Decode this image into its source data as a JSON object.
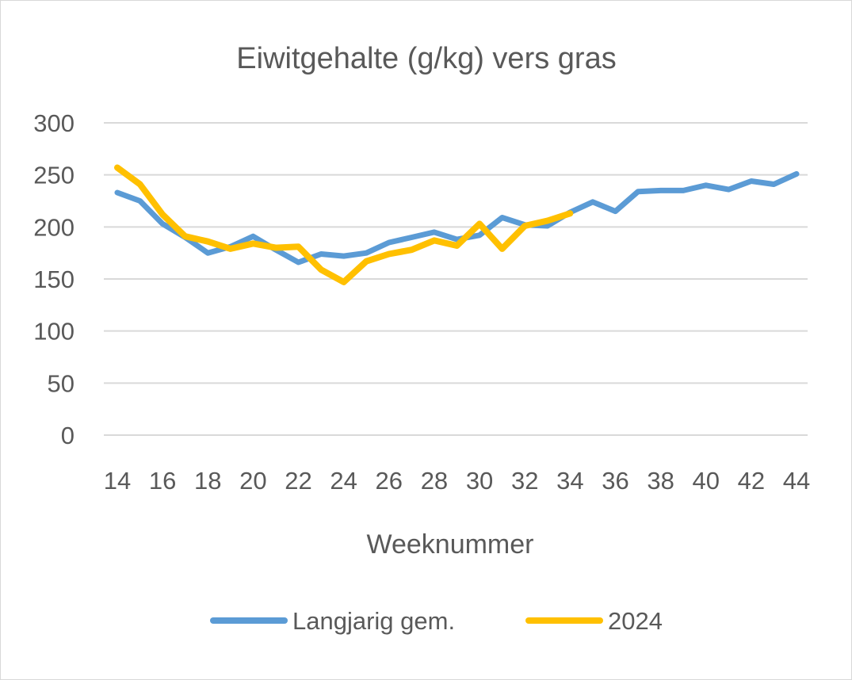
{
  "chart_data": {
    "type": "line",
    "title": "Eiwitgehalte (g/kg) vers gras",
    "xlabel": "Weeknummer",
    "ylabel": "",
    "xlim": [
      14,
      44
    ],
    "ylim": [
      0,
      300
    ],
    "y_ticks": [
      0,
      50,
      100,
      150,
      200,
      250,
      300
    ],
    "x_ticks": [
      14,
      16,
      18,
      20,
      22,
      24,
      26,
      28,
      30,
      32,
      34,
      36,
      38,
      40,
      42,
      44
    ],
    "grid": true,
    "legend_position": "bottom",
    "series": [
      {
        "name": "Langjarig gem.",
        "color": "#5b9bd5",
        "x": [
          14,
          15,
          16,
          17,
          18,
          19,
          20,
          21,
          22,
          23,
          24,
          25,
          26,
          27,
          28,
          29,
          30,
          31,
          32,
          33,
          34,
          35,
          36,
          37,
          38,
          39,
          40,
          41,
          42,
          43,
          44
        ],
        "values": [
          233,
          225,
          203,
          190,
          175,
          181,
          191,
          178,
          166,
          174,
          172,
          175,
          185,
          190,
          195,
          188,
          192,
          209,
          202,
          201,
          214,
          224,
          215,
          234,
          235,
          235,
          240,
          236,
          244,
          241,
          251
        ]
      },
      {
        "name": "2024",
        "color": "#ffc000",
        "x": [
          14,
          15,
          16,
          17,
          18,
          19,
          20,
          21,
          22,
          23,
          24,
          25,
          26,
          27,
          28,
          29,
          30,
          31,
          32,
          33,
          34
        ],
        "values": [
          257,
          241,
          212,
          191,
          186,
          179,
          184,
          180,
          181,
          159,
          147,
          167,
          174,
          178,
          187,
          182,
          203,
          179,
          201,
          206,
          213
        ]
      }
    ]
  }
}
